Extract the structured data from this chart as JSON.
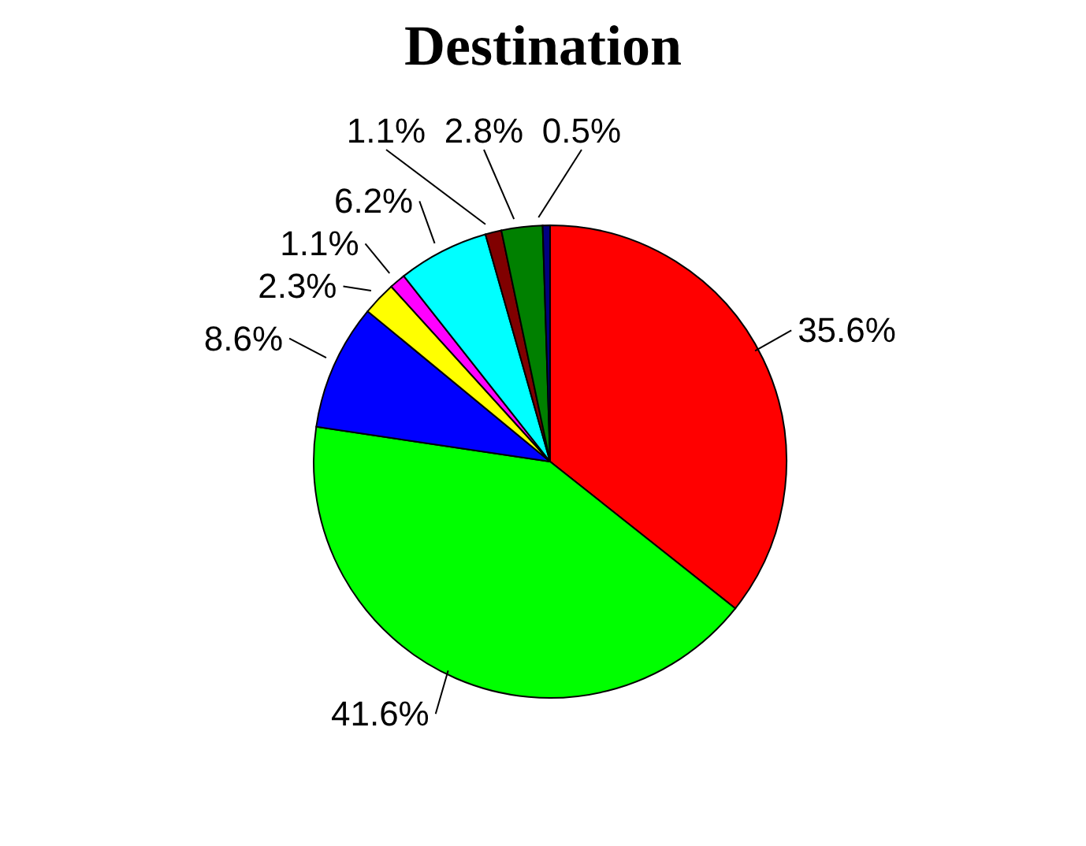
{
  "chart_data": {
    "type": "pie",
    "title": "Destination",
    "categories": [
      null,
      null,
      null,
      null,
      null,
      null,
      null,
      null,
      null
    ],
    "values": [
      35.6,
      41.6,
      8.6,
      2.3,
      1.1,
      6.2,
      1.1,
      2.8,
      0.5
    ],
    "colors": [
      "#ff0000",
      "#00ff00",
      "#0000ff",
      "#ffff00",
      "#ff00ff",
      "#00ffff",
      "#800000",
      "#008000",
      "#000080"
    ],
    "value_labels": [
      "35.6%",
      "41.6%",
      "8.6%",
      "2.3%",
      "1.1%",
      "6.2%",
      "1.1%",
      "2.8%",
      "0.5%"
    ],
    "legend": false
  }
}
